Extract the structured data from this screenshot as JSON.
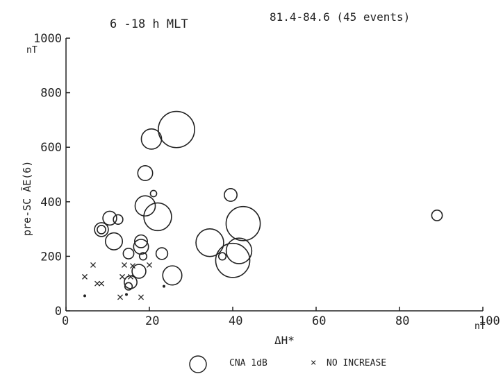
{
  "chart_data": {
    "type": "scatter",
    "title_left": "6 -18 h MLT",
    "title_right": "81.4-84.6 (45  events)",
    "xlabel": "ΔH*",
    "xunit": "nT",
    "ylabel": "pre-SC ĀE(6)",
    "yunit": "nT",
    "xlim": [
      0,
      100
    ],
    "ylim": [
      0,
      1000
    ],
    "x_ticks": [
      "0",
      "20",
      "40",
      "60",
      "80",
      "100"
    ],
    "y_ticks": [
      "0",
      "200",
      "400",
      "600",
      "800",
      "1000"
    ],
    "grid": false,
    "legend": [
      {
        "symbol": "circle",
        "label": "CNA 1dB"
      },
      {
        "symbol": "cross",
        "label": "NO INCREASE"
      }
    ],
    "series": [
      {
        "name": "CNA 1dB",
        "marker": "circle",
        "points": [
          {
            "x": 26.5,
            "y": 665,
            "cna": 3.0
          },
          {
            "x": 20.5,
            "y": 630,
            "cna": 1.5
          },
          {
            "x": 19.0,
            "y": 505,
            "cna": 1.0
          },
          {
            "x": 21.0,
            "y": 430,
            "cna": 0.2
          },
          {
            "x": 19.0,
            "y": 385,
            "cna": 1.5
          },
          {
            "x": 22.0,
            "y": 345,
            "cna": 2.2
          },
          {
            "x": 10.5,
            "y": 340,
            "cna": 0.9
          },
          {
            "x": 12.5,
            "y": 335,
            "cna": 0.5
          },
          {
            "x": 8.5,
            "y": 298,
            "cna": 0.9
          },
          {
            "x": 8.5,
            "y": 298,
            "cna": 0.4
          },
          {
            "x": 11.5,
            "y": 255,
            "cna": 1.2
          },
          {
            "x": 18.0,
            "y": 255,
            "cna": 0.8
          },
          {
            "x": 18.0,
            "y": 235,
            "cna": 1.0
          },
          {
            "x": 15.0,
            "y": 210,
            "cna": 0.6
          },
          {
            "x": 23.0,
            "y": 210,
            "cna": 0.7
          },
          {
            "x": 18.5,
            "y": 200,
            "cna": 0.3
          },
          {
            "x": 17.5,
            "y": 145,
            "cna": 0.9
          },
          {
            "x": 25.5,
            "y": 130,
            "cna": 1.4
          },
          {
            "x": 15.5,
            "y": 105,
            "cna": 0.8
          },
          {
            "x": 15.0,
            "y": 90,
            "cna": 0.3
          },
          {
            "x": 39.5,
            "y": 425,
            "cna": 0.8
          },
          {
            "x": 42.5,
            "y": 320,
            "cna": 2.8
          },
          {
            "x": 34.5,
            "y": 250,
            "cna": 2.2
          },
          {
            "x": 41.5,
            "y": 220,
            "cna": 2.0
          },
          {
            "x": 40.0,
            "y": 185,
            "cna": 2.8
          },
          {
            "x": 37.5,
            "y": 200,
            "cna": 0.3
          },
          {
            "x": 89.0,
            "y": 350,
            "cna": 0.6
          }
        ]
      },
      {
        "name": "NO INCREASE",
        "marker": "cross",
        "points": [
          {
            "x": 6.5,
            "y": 168
          },
          {
            "x": 4.5,
            "y": 125
          },
          {
            "x": 7.5,
            "y": 100
          },
          {
            "x": 8.5,
            "y": 100
          },
          {
            "x": 14.0,
            "y": 168
          },
          {
            "x": 16.0,
            "y": 165
          },
          {
            "x": 20.0,
            "y": 168
          },
          {
            "x": 13.5,
            "y": 125
          },
          {
            "x": 15.5,
            "y": 125
          },
          {
            "x": 13.0,
            "y": 50
          },
          {
            "x": 18.0,
            "y": 50
          }
        ]
      },
      {
        "name": "",
        "marker": "dot",
        "points": [
          {
            "x": 4.5,
            "y": 55
          },
          {
            "x": 14.5,
            "y": 60
          },
          {
            "x": 23.5,
            "y": 90
          }
        ]
      }
    ]
  }
}
